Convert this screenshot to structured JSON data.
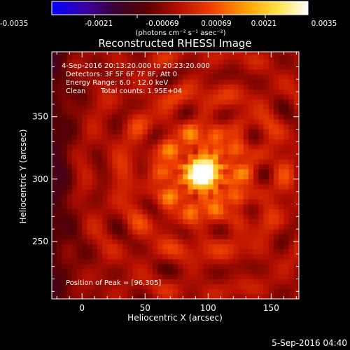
{
  "colorbar": {
    "tick_labels": [
      "-0.0035",
      "-0.0021",
      "-0.00069",
      "0.00069",
      "0.0021",
      "0.0035"
    ],
    "units": "(photons cm⁻² s⁻¹ asec⁻²)",
    "colors": [
      "#0000ff",
      "#3b00a8",
      "#3a0030",
      "#5a0000",
      "#b81000",
      "#f04000",
      "#ff9a00",
      "#ffe040",
      "#ffffff"
    ]
  },
  "chart_data": {
    "type": "heatmap",
    "title": "Reconstructed RHESSI Image",
    "xlabel": "Heliocentric X (arcsec)",
    "ylabel": "Heliocentric Y (arcsec)",
    "xlim": [
      -24,
      172
    ],
    "ylim": [
      204,
      402
    ],
    "xticks": [
      0,
      50,
      100,
      150
    ],
    "yticks": [
      250,
      300,
      350
    ],
    "peak": {
      "x": 96,
      "y": 305,
      "value": 0.0035
    },
    "grid_step_arcsec": 4,
    "vrange": [
      -0.0035,
      0.0035
    ],
    "annotations": {
      "time_range": "4-Sep-2016 20:13:20.000 to 20:23:20.000",
      "detectors": "Detectors: 3F 5F 6F 7F 8F, Att 0",
      "energy_range": "Energy Range: 6.0 - 12.0 keV",
      "clean": "Clean",
      "total_counts": "Total counts: 1.95E+04",
      "peak_position": "Position of Peak = [96,305]"
    }
  },
  "footer": {
    "timestamp": "5-Sep-2016 04:40"
  }
}
